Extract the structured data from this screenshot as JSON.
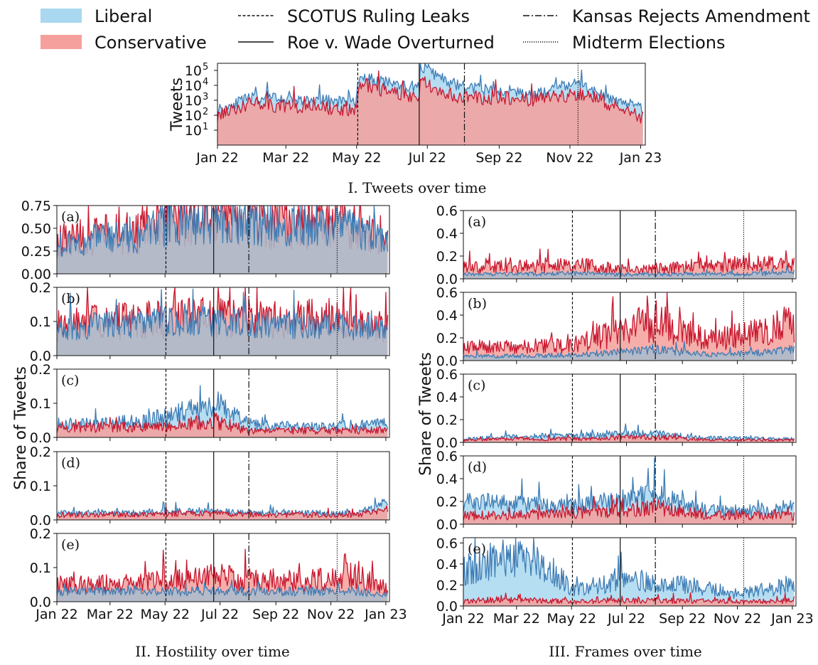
{
  "colors": {
    "liberal_fill": "#a9d8f0",
    "liberal_line": "#3f7db5",
    "conservative_fill": "#f5a09c",
    "conservative_line": "#c8182f",
    "overlap_fill": "#a9bccd"
  },
  "legend": {
    "liberal": "Liberal",
    "conservative": "Conservative",
    "scotus_leak": "SCOTUS Ruling Leaks",
    "roe_overturned": "Roe v. Wade Overturned",
    "kansas": "Kansas Rejects Amendment",
    "midterms": "Midterm Elections"
  },
  "events": [
    {
      "key": "scotus_leak",
      "date": "2022-05-02",
      "style": "dashed"
    },
    {
      "key": "roe_overturned",
      "date": "2022-06-24",
      "style": "solid"
    },
    {
      "key": "kansas",
      "date": "2022-08-02",
      "style": "dashdot"
    },
    {
      "key": "midterms",
      "date": "2022-11-08",
      "style": "dotted"
    }
  ],
  "captions": {
    "tweets": "I. Tweets over time",
    "hostility": "II. Hostility over time",
    "frames": "III. Frames over time"
  },
  "x_ticks": [
    "Jan 22",
    "Mar 22",
    "May 22",
    "Jul 22",
    "Sep 22",
    "Nov 22",
    "Jan 23"
  ],
  "chart_data": [
    {
      "id": "tweets",
      "type": "area",
      "scale": "log",
      "ylabel": "Tweets",
      "ylim": [
        1,
        300000
      ],
      "yticks": [
        {
          "base": "10",
          "exp": "1",
          "value": 10
        },
        {
          "base": "10",
          "exp": "2",
          "value": 100
        },
        {
          "base": "10",
          "exp": "3",
          "value": 1000
        },
        {
          "base": "10",
          "exp": "4",
          "value": 10000
        },
        {
          "base": "10",
          "exp": "5",
          "value": 100000
        }
      ],
      "x": [
        "2022-01-01",
        "2022-02-01",
        "2022-03-01",
        "2022-04-01",
        "2022-05-01",
        "2022-05-03",
        "2022-06-01",
        "2022-06-24",
        "2022-06-25",
        "2022-07-15",
        "2022-08-02",
        "2022-09-01",
        "2022-10-01",
        "2022-11-09",
        "2022-12-01",
        "2023-01-05"
      ],
      "series": [
        {
          "name": "Liberal",
          "values": [
            250,
            1500,
            1200,
            900,
            1000,
            40000,
            12000,
            8000,
            250000,
            20000,
            8000,
            4000,
            3000,
            15000,
            2000,
            300
          ]
        },
        {
          "name": "Conservative",
          "values": [
            120,
            600,
            400,
            300,
            250,
            15000,
            3000,
            2000,
            20000,
            3000,
            1500,
            1500,
            1200,
            3000,
            800,
            50
          ]
        }
      ]
    },
    {
      "group": "hostility",
      "label": "(a)",
      "type": "area",
      "ylim": [
        0,
        0.75
      ],
      "yticks": [
        "0.00",
        "0.25",
        "0.50",
        "0.75"
      ],
      "x": [
        "2022-01-01",
        "2022-02-15",
        "2022-04-01",
        "2022-05-03",
        "2022-06-15",
        "2022-08-01",
        "2022-10-01",
        "2022-12-01",
        "2023-01-05"
      ],
      "series": [
        {
          "name": "Liberal",
          "values": [
            0.3,
            0.4,
            0.4,
            0.55,
            0.58,
            0.55,
            0.52,
            0.5,
            0.35
          ]
        },
        {
          "name": "Conservative",
          "values": [
            0.35,
            0.42,
            0.45,
            0.62,
            0.65,
            0.6,
            0.58,
            0.58,
            0.38
          ]
        }
      ]
    },
    {
      "group": "hostility",
      "label": "(b)",
      "type": "area",
      "ylim": [
        0,
        0.2
      ],
      "yticks": [
        "0.0",
        "0.1",
        "0.2"
      ],
      "x": [
        "2022-01-01",
        "2022-03-01",
        "2022-05-03",
        "2022-07-01",
        "2022-09-01",
        "2022-11-01",
        "2023-01-05"
      ],
      "series": [
        {
          "name": "Liberal",
          "values": [
            0.08,
            0.09,
            0.1,
            0.1,
            0.09,
            0.09,
            0.07
          ]
        },
        {
          "name": "Conservative",
          "values": [
            0.09,
            0.1,
            0.11,
            0.11,
            0.1,
            0.12,
            0.08
          ]
        }
      ]
    },
    {
      "group": "hostility",
      "label": "(c)",
      "type": "area",
      "ylim": [
        0,
        0.2
      ],
      "yticks": [
        "0.0",
        "0.1",
        "0.2"
      ],
      "x": [
        "2022-01-01",
        "2022-03-01",
        "2022-05-03",
        "2022-06-24",
        "2022-08-01",
        "2022-10-01",
        "2023-01-05"
      ],
      "series": [
        {
          "name": "Liberal",
          "values": [
            0.04,
            0.04,
            0.06,
            0.1,
            0.04,
            0.03,
            0.04
          ]
        },
        {
          "name": "Conservative",
          "values": [
            0.03,
            0.03,
            0.03,
            0.05,
            0.02,
            0.02,
            0.02
          ]
        }
      ]
    },
    {
      "group": "hostility",
      "label": "(d)",
      "type": "area",
      "ylim": [
        0,
        0.2
      ],
      "yticks": [
        "0.0",
        "0.1",
        "0.2"
      ],
      "x": [
        "2022-01-01",
        "2022-04-01",
        "2022-06-01",
        "2022-09-01",
        "2022-12-01",
        "2023-01-05"
      ],
      "series": [
        {
          "name": "Liberal",
          "values": [
            0.02,
            0.02,
            0.025,
            0.02,
            0.02,
            0.05
          ]
        },
        {
          "name": "Conservative",
          "values": [
            0.015,
            0.015,
            0.02,
            0.015,
            0.015,
            0.03
          ]
        }
      ]
    },
    {
      "group": "hostility",
      "label": "(e)",
      "type": "area",
      "ylim": [
        0,
        0.2
      ],
      "yticks": [
        "0.0",
        "0.1",
        "0.2"
      ],
      "x": [
        "2022-01-01",
        "2022-03-01",
        "2022-05-03",
        "2022-07-01",
        "2022-09-01",
        "2022-12-01",
        "2023-01-05"
      ],
      "series": [
        {
          "name": "Liberal",
          "values": [
            0.03,
            0.03,
            0.03,
            0.03,
            0.03,
            0.03,
            0.02
          ]
        },
        {
          "name": "Conservative",
          "values": [
            0.05,
            0.05,
            0.06,
            0.08,
            0.05,
            0.08,
            0.03
          ]
        }
      ]
    },
    {
      "group": "frames",
      "label": "(a)",
      "type": "area",
      "ylim": [
        0,
        0.6
      ],
      "yticks": [
        "0.0",
        "0.2",
        "0.4",
        "0.6"
      ],
      "x": [
        "2022-01-01",
        "2022-03-01",
        "2022-05-15",
        "2022-07-01",
        "2022-09-01",
        "2022-11-01",
        "2023-01-05"
      ],
      "series": [
        {
          "name": "Liberal",
          "values": [
            0.04,
            0.04,
            0.05,
            0.04,
            0.04,
            0.04,
            0.06
          ]
        },
        {
          "name": "Conservative",
          "values": [
            0.1,
            0.11,
            0.12,
            0.08,
            0.1,
            0.12,
            0.15
          ]
        }
      ]
    },
    {
      "group": "frames",
      "label": "(b)",
      "type": "area",
      "ylim": [
        0,
        0.6
      ],
      "yticks": [
        "0.0",
        "0.2",
        "0.4",
        "0.6"
      ],
      "x": [
        "2022-01-01",
        "2022-03-01",
        "2022-05-03",
        "2022-08-05",
        "2022-10-01",
        "2022-12-01",
        "2023-01-05"
      ],
      "series": [
        {
          "name": "Liberal",
          "values": [
            0.04,
            0.04,
            0.05,
            0.1,
            0.05,
            0.07,
            0.1
          ]
        },
        {
          "name": "Conservative",
          "values": [
            0.12,
            0.12,
            0.14,
            0.35,
            0.18,
            0.25,
            0.35
          ]
        }
      ]
    },
    {
      "group": "frames",
      "label": "(c)",
      "type": "area",
      "ylim": [
        0,
        0.6
      ],
      "yticks": [
        "0.0",
        "0.2",
        "0.4",
        "0.6"
      ],
      "x": [
        "2022-01-01",
        "2022-03-01",
        "2022-05-01",
        "2022-08-01",
        "2022-10-01",
        "2023-01-05"
      ],
      "series": [
        {
          "name": "Liberal",
          "values": [
            0.03,
            0.05,
            0.06,
            0.08,
            0.04,
            0.03
          ]
        },
        {
          "name": "Conservative",
          "values": [
            0.02,
            0.03,
            0.03,
            0.05,
            0.02,
            0.02
          ]
        }
      ]
    },
    {
      "group": "frames",
      "label": "(d)",
      "type": "area",
      "ylim": [
        0,
        0.6
      ],
      "yticks": [
        "0.0",
        "0.2",
        "0.4",
        "0.6"
      ],
      "x": [
        "2022-01-01",
        "2022-03-01",
        "2022-05-03",
        "2022-08-01",
        "2022-10-01",
        "2022-12-01",
        "2023-01-05"
      ],
      "series": [
        {
          "name": "Liberal",
          "values": [
            0.2,
            0.18,
            0.16,
            0.25,
            0.12,
            0.12,
            0.15
          ]
        },
        {
          "name": "Conservative",
          "values": [
            0.08,
            0.08,
            0.1,
            0.15,
            0.08,
            0.08,
            0.07
          ]
        }
      ]
    },
    {
      "group": "frames",
      "label": "(e)",
      "type": "area",
      "ylim": [
        0,
        0.65
      ],
      "yticks": [
        "0.0",
        "0.2",
        "0.4",
        "0.6"
      ],
      "x": [
        "2022-01-01",
        "2022-02-15",
        "2022-04-01",
        "2022-05-03",
        "2022-07-01",
        "2022-09-01",
        "2022-11-01",
        "2023-01-05"
      ],
      "series": [
        {
          "name": "Liberal",
          "values": [
            0.35,
            0.45,
            0.4,
            0.15,
            0.25,
            0.2,
            0.12,
            0.2
          ]
        },
        {
          "name": "Conservative",
          "values": [
            0.05,
            0.06,
            0.05,
            0.04,
            0.05,
            0.05,
            0.04,
            0.05
          ]
        }
      ]
    }
  ]
}
